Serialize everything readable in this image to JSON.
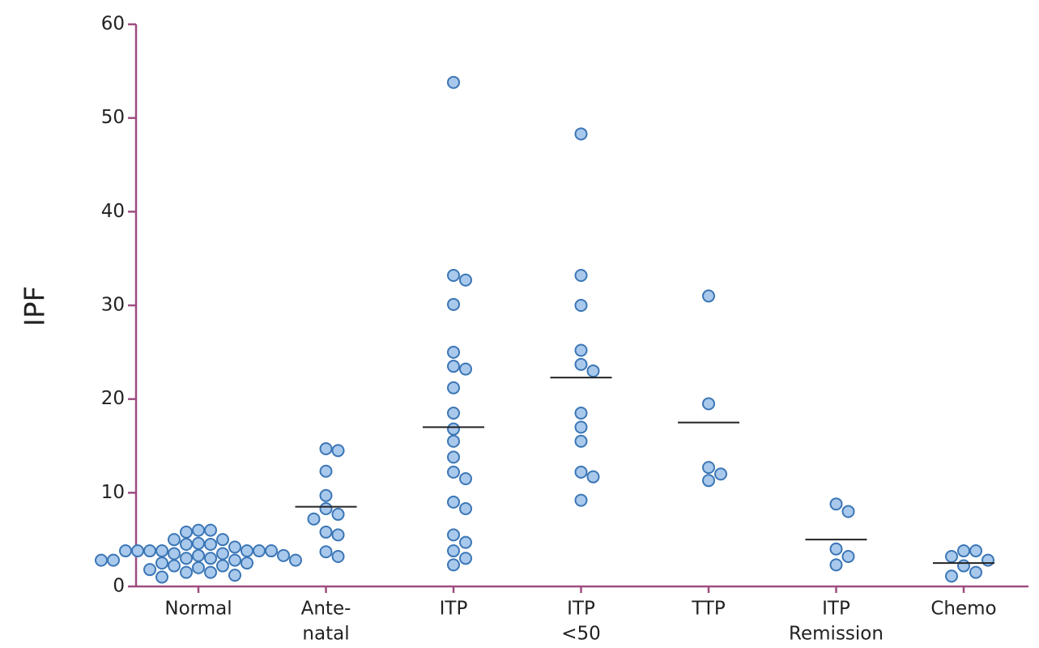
{
  "chart_data": {
    "type": "strip",
    "y_label": "IPF",
    "categories": [
      [
        "Normal"
      ],
      [
        "Ante-",
        "natal"
      ],
      [
        "ITP"
      ],
      [
        "ITP",
        "<50"
      ],
      [
        "TTP"
      ],
      [
        "ITP",
        "Remission"
      ],
      [
        "Chemo"
      ]
    ],
    "values": [
      [
        6,
        6,
        5.8,
        5,
        5,
        4.6,
        4.5,
        4.5,
        4.2,
        3.8,
        3.8,
        3.8,
        3.8,
        3.8,
        3.8,
        3.8,
        3.5,
        3.5,
        3.3,
        3.3,
        3,
        3,
        2.8,
        2.8,
        2.8,
        2.8,
        2.5,
        2.5,
        2.2,
        2.2,
        2,
        1.8,
        1.5,
        1.5,
        1.2,
        1
      ],
      [
        14.7,
        14.5,
        12.3,
        9.7,
        8.3,
        7.7,
        7.2,
        5.8,
        5.5,
        3.7,
        3.2
      ],
      [
        53.8,
        33.2,
        32.7,
        30.1,
        25,
        23.5,
        23.2,
        21.2,
        18.5,
        16.8,
        15.5,
        13.8,
        12.2,
        11.5,
        9,
        8.3,
        5.5,
        4.7,
        3.8,
        3,
        2.3
      ],
      [
        48.3,
        33.2,
        30,
        25.2,
        23.7,
        23,
        18.5,
        17,
        15.5,
        12.2,
        11.7,
        9.2
      ],
      [
        31,
        19.5,
        12.7,
        12,
        11.3
      ],
      [
        8.8,
        8,
        4,
        3.2,
        2.3
      ],
      [
        3.8,
        3.8,
        3.2,
        2.8,
        2.2,
        1.5,
        1.1
      ]
    ],
    "medians": [
      null,
      8.5,
      17,
      22.3,
      17.5,
      5,
      2.5
    ],
    "ylim": [
      0,
      60
    ],
    "yticks": [
      0,
      10,
      20,
      30,
      40,
      50,
      60
    ],
    "color": "#a9c9ec",
    "edge_color": "#3b76b6",
    "axis_color": "#9c4d80",
    "median_color": "#222222"
  }
}
